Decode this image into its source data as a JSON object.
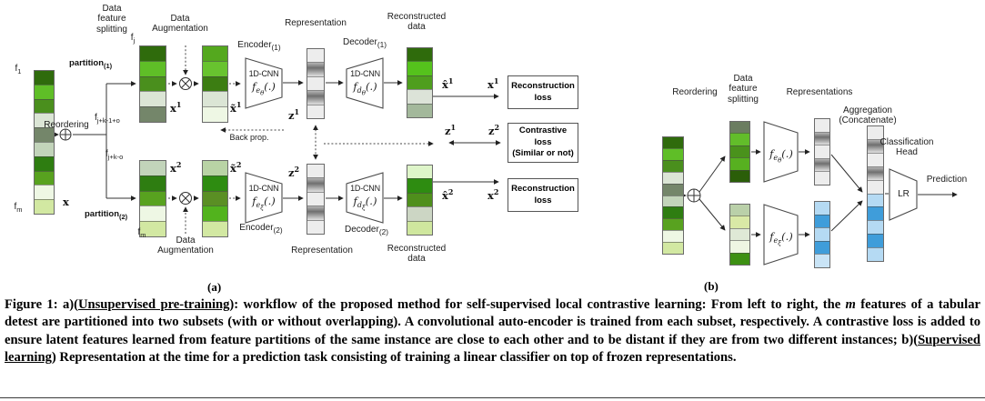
{
  "a": {
    "panel_label": "(a)",
    "labels": {
      "data_feature_splitting": "Data\nfeature\nsplitting",
      "data_augmentation_top": "Data\nAugmentation",
      "data_augmentation_bottom": "Data\nAugmentation",
      "reordering": "Reordering",
      "back_prop": "Back prop.",
      "encoder1": "Encoder<sub>(1)</sub>",
      "encoder2": "Encoder<sub>(2)</sub>",
      "decoder1": "Decoder<sub>(1)</sub>",
      "decoder2": "Decoder<sub>(2)</sub>",
      "representation_top": "Representation",
      "representation_bottom": "Representation",
      "reconstructed_top": "Reconstructed\ndata",
      "reconstructed_bottom": "Reconstructed\ndata",
      "cnn": "1D-CNN",
      "enc1_fn": "f<sub>e<sub>θ</sub></sub>(.)",
      "enc2_fn": "f<sub>e<sub>ξ</sub></sub>(.)",
      "dec1_fn": "f<sub>d<sub>θ</sub></sub>(.)",
      "dec2_fn": "f<sub>d<sub>ξ</sub></sub>(.)",
      "f1": "f<sub>1</sub>",
      "fm_left": "f<sub>m</sub>",
      "fj": "f<sub>j</sub>",
      "fjk1o": "f<sub>j+k-1+o</sub>",
      "fjko": "f<sub>j+k-o</sub>",
      "fm_bottom": "f<sub>m</sub>",
      "partition1": "partition<sub>(1)</sub>",
      "partition2": "partition<sub>(2)</sub>",
      "x": "x",
      "x1": "x<sup>1</sup>",
      "x2": "x<sup>2</sup>",
      "xt1": "x̃<sup>1</sup>",
      "xt2": "x̃<sup>2</sup>",
      "z1": "z<sup>1</sup>",
      "z2": "z<sup>2</sup>",
      "xh1": "x̂<sup>1</sup>",
      "x1_loss": "x<sup>1</sup>",
      "z1_loss": "z<sup>1</sup>",
      "z2_loss": "z<sup>2</sup>",
      "xh2": "x̂<sup>2</sup>",
      "x2_loss": "x<sup>2</sup>"
    },
    "operators": {
      "reordering_op": "circled-plus",
      "augmentation_op": "circled-times"
    },
    "loss_boxes": {
      "recon_top": "Reconstruction\nloss",
      "contrastive": "Contrastive\nloss\n(Similar or not)",
      "recon_bottom": "Reconstruction\nloss"
    },
    "columns": {
      "x": [
        "#2f6b0c",
        "#5fbe27",
        "#4a8f1d",
        "#dbe5d5",
        "#74866a",
        "#c2d4ba",
        "#2e7d11",
        "#58a21f",
        "#eef7e4",
        "#d2e8a2"
      ],
      "x1": [
        "#2f6b0c",
        "#5fbe27",
        "#4a8f1d",
        "#dbe5d5",
        "#74866a"
      ],
      "xt1": [
        "#54a81e",
        "#68c32f",
        "#3c7d12",
        "#dbe5d5",
        "#eef7e4"
      ],
      "z1": [
        "#ededed",
        "gradient-gray",
        "#ededed",
        "gradient-gray",
        "#ededed"
      ],
      "recon1": [
        "#2f6b0c",
        "#55c21c",
        "#4f9e1e",
        "#dce3d8",
        "#a3b89b"
      ],
      "x2": [
        "#c2d4ba",
        "#2e7d11",
        "#58a21f",
        "#eef7e4",
        "#d2e8a2"
      ],
      "xt2": [
        "#b9d3a5",
        "#2e8c11",
        "#5a8f24",
        "#52b31d",
        "#d2e8a2"
      ],
      "z2": [
        "#ededed",
        "gradient-gray",
        "#ededed",
        "gradient-gray",
        "#ededed"
      ],
      "recon2": [
        "#def5c9",
        "#2e8c11",
        "#4f8f1c",
        "#ccd6c4",
        "#cfe79e"
      ]
    }
  },
  "b": {
    "panel_label": "(b)",
    "labels": {
      "reordering": "Reordering",
      "data_feature_splitting": "Data\nfeature\nsplitting",
      "representations": "Representations",
      "aggregation": "Aggregation\n(Concatenate)",
      "classification_head": "Classification\nHead",
      "prediction": "Prediction",
      "lr": "LR",
      "enc_top_fn": "f<sub>e<sub>θ</sub></sub>(.)",
      "enc_bottom_fn": "f<sub>e<sub>ξ</sub></sub>(.)"
    },
    "operators": {
      "reordering_op": "circled-plus"
    },
    "columns": {
      "input": [
        "#2f6b0c",
        "#5fbe27",
        "#4a8f1d",
        "#dbe5d5",
        "#74866a",
        "#c2d4ba",
        "#2e7d11",
        "#58a21f",
        "#eef7e4",
        "#d2e8a2"
      ],
      "part_top": [
        "#6b7d60",
        "#62bd2a",
        "#4a921c",
        "#57b020",
        "#2b5e09"
      ],
      "part_bottom": [
        "#bad0a9",
        "#d9e9a6",
        "#dfe9d6",
        "#eef6e3",
        "#3d9013"
      ],
      "rep_top": [
        "#ededed",
        "gradient-gray",
        "#ededed",
        "gradient-gray",
        "#ededed"
      ],
      "rep_bottom": [
        "#b5daf3",
        "#3f9dda",
        "#b5daf3",
        "#3f9dda",
        "#c9e4f6"
      ],
      "aggregation": [
        "#ededed",
        "gradient-gray",
        "#ededed",
        "gradient-gray",
        "#ededed",
        "#b5daf3",
        "#3f9dda",
        "#b5daf3",
        "#3f9dda",
        "#b5daf3"
      ]
    }
  },
  "caption": {
    "segments": [
      {
        "text": "Figure 1: a)("
      },
      {
        "text": "Unsupervised pre-training",
        "underline": true
      },
      {
        "text": "): workflow of the proposed method for self-supervised local contrastive learning: From left to right, the "
      },
      {
        "text": "m",
        "italic": true
      },
      {
        "text": " features of a tabular detest are partitioned into two subsets (with or without overlapping). A convolutional auto-encoder is trained from each subset, respectively. A contrastive loss is added to ensure latent features learned from feature partitions of the same instance are close to each other and to be distant if they are from two different instances; b)("
      },
      {
        "text": "Supervised learning",
        "underline": true
      },
      {
        "text": ") Representation at the time for a prediction task consisting of training a linear classifier on top of frozen representations."
      }
    ]
  }
}
